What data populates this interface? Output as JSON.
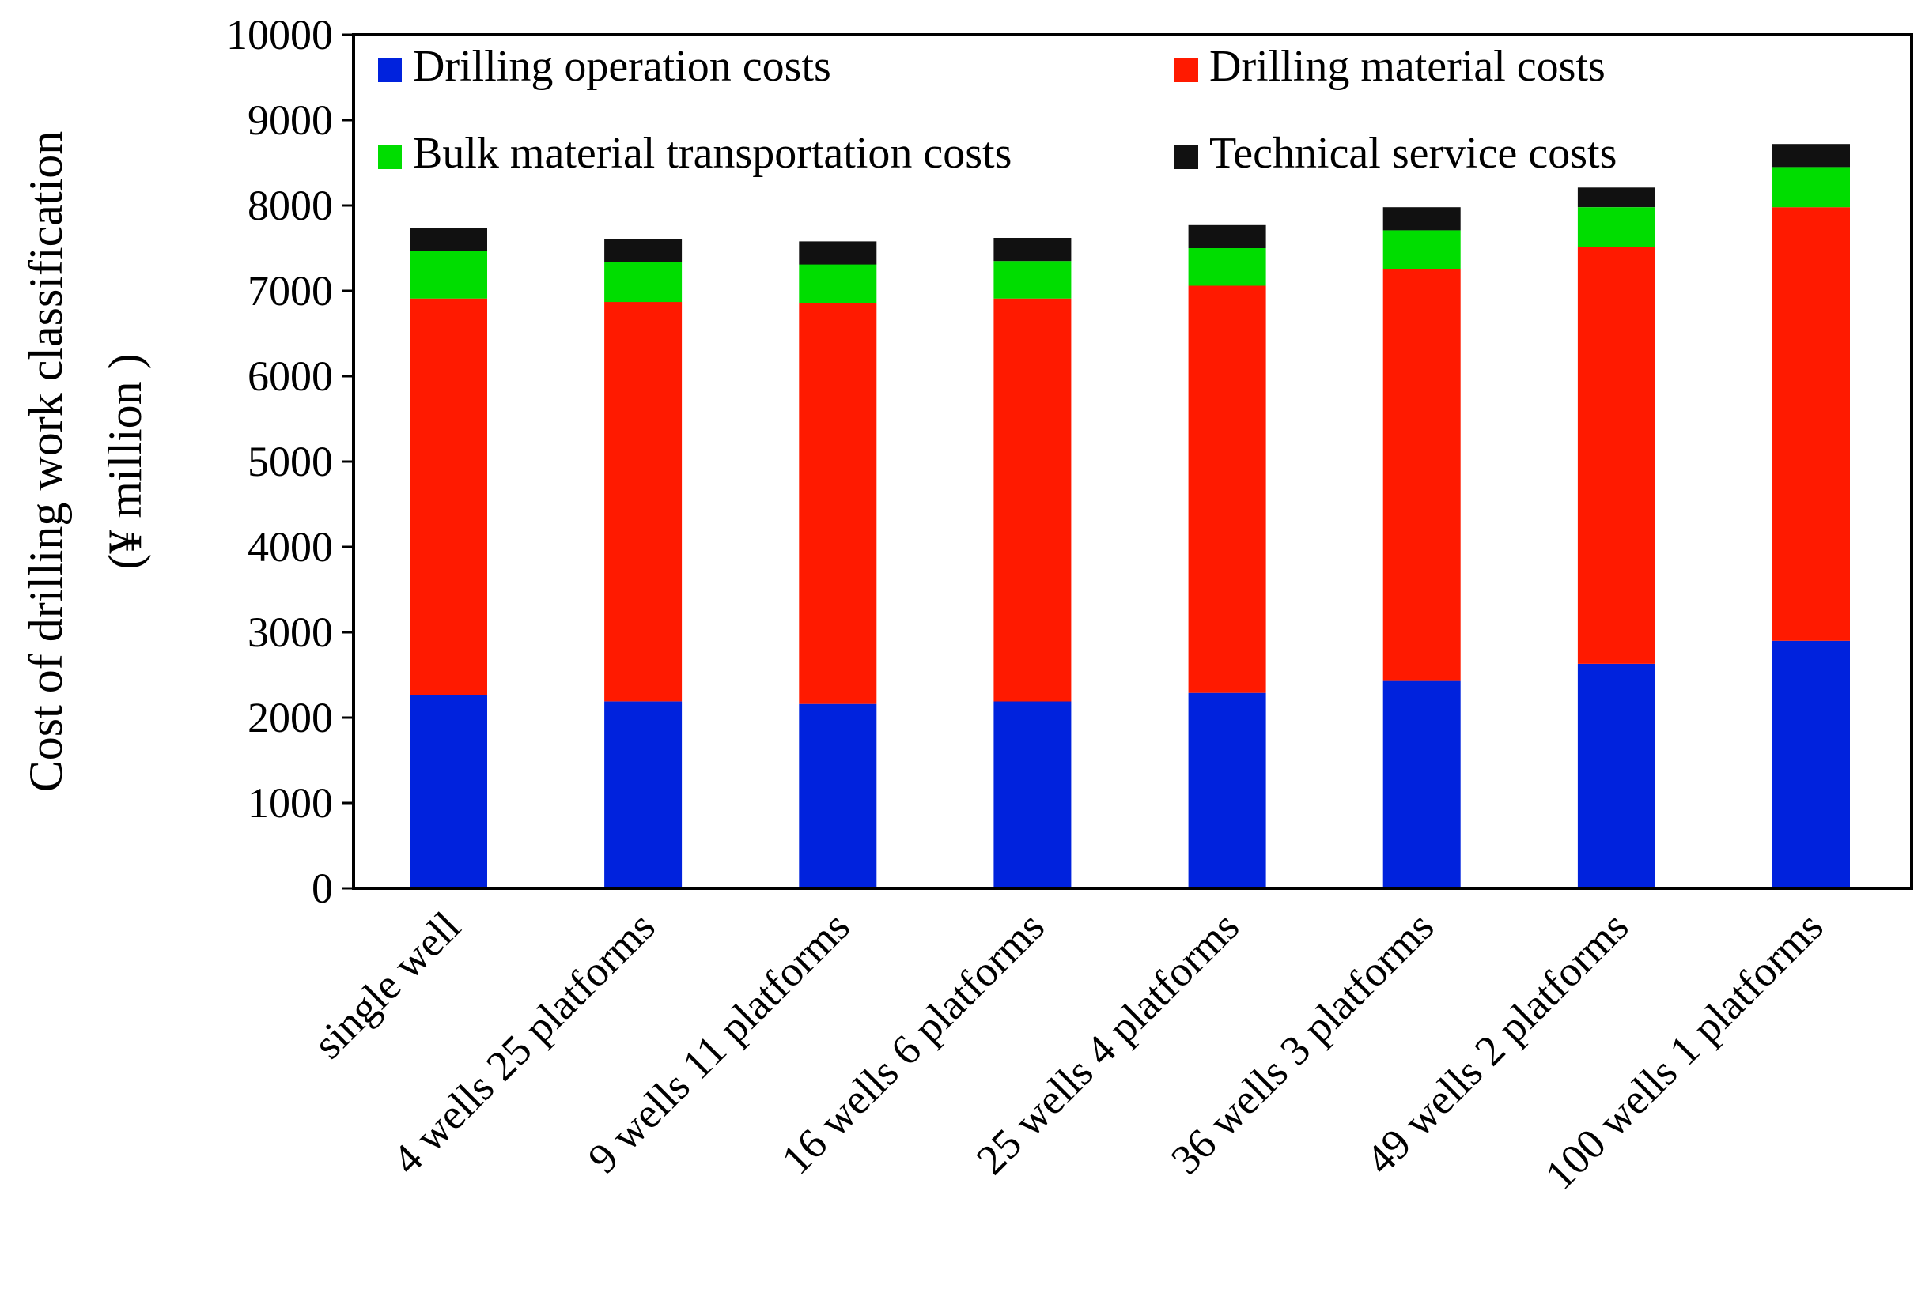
{
  "chart_data": {
    "type": "bar",
    "stacked": true,
    "title": "",
    "xlabel": "",
    "ylabel": "Cost of drilling work classification",
    "ylabel_unit": "(¥ million )",
    "ylim": [
      0,
      10000
    ],
    "yticks": [
      0,
      1000,
      2000,
      3000,
      4000,
      5000,
      6000,
      7000,
      8000,
      9000,
      10000
    ],
    "grid": false,
    "legend_position": "top",
    "categories": [
      "single well",
      "4 wells 25 platforms",
      "9 wells 11 platforms",
      "16 wells 6 platforms",
      "25 wells 4 platforms",
      "36 wells 3 platforms",
      "49 wells 2 platforms",
      "100 wells 1 platforms"
    ],
    "series": [
      {
        "name": "Drilling operation costs",
        "color": "#0022dd",
        "values": [
          2260,
          2190,
          2160,
          2190,
          2290,
          2430,
          2630,
          2900
        ]
      },
      {
        "name": "Drilling material costs",
        "color": "#ff1a00",
        "values": [
          4650,
          4680,
          4700,
          4720,
          4770,
          4820,
          4880,
          5080
        ]
      },
      {
        "name": "Bulk material transportation costs",
        "color": "#00dd00",
        "values": [
          560,
          470,
          450,
          440,
          440,
          460,
          470,
          470
        ]
      },
      {
        "name": "Technical service costs",
        "color": "#111111",
        "values": [
          270,
          270,
          270,
          270,
          270,
          270,
          230,
          270
        ]
      }
    ]
  }
}
